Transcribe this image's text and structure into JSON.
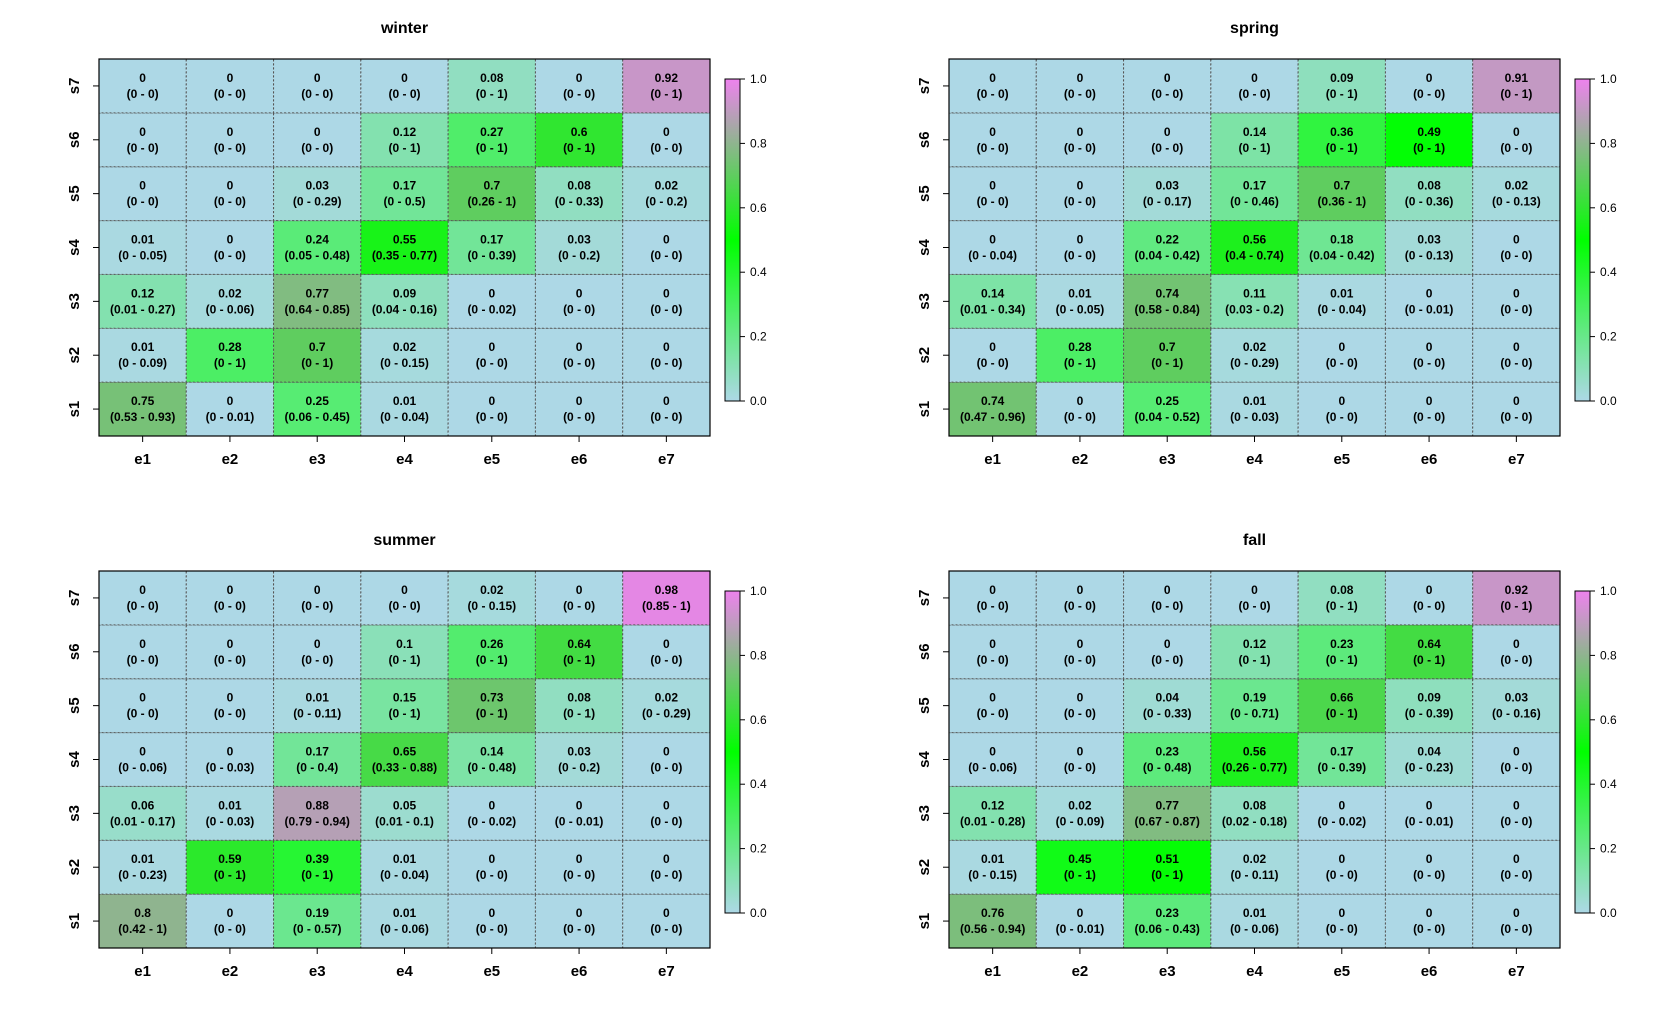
{
  "chart_data": [
    {
      "type": "heatmap",
      "title": "winter",
      "x_categories": [
        "e1",
        "e2",
        "e3",
        "e4",
        "e5",
        "e6",
        "e7"
      ],
      "y_categories": [
        "s1",
        "s2",
        "s3",
        "s4",
        "s5",
        "s6",
        "s7"
      ],
      "values": [
        [
          0.75,
          0,
          0.25,
          0.01,
          0,
          0,
          0
        ],
        [
          0.01,
          0.28,
          0.7,
          0.02,
          0,
          0,
          0
        ],
        [
          0.12,
          0.02,
          0.77,
          0.09,
          0,
          0,
          0
        ],
        [
          0.01,
          0,
          0.24,
          0.55,
          0.17,
          0.03,
          0
        ],
        [
          0,
          0,
          0.03,
          0.17,
          0.7,
          0.08,
          0.02
        ],
        [
          0,
          0,
          0,
          0.12,
          0.27,
          0.6,
          0
        ],
        [
          0,
          0,
          0,
          0,
          0.08,
          0,
          0.92
        ]
      ],
      "cell_labels": [
        [
          "0.75",
          "0",
          "0.25",
          "0.01",
          "0",
          "0",
          "0"
        ],
        [
          "0.01",
          "0.28",
          "0.7",
          "0.02",
          "0",
          "0",
          "0"
        ],
        [
          "0.12",
          "0.02",
          "0.77",
          "0.09",
          "0",
          "0",
          "0"
        ],
        [
          "0.01",
          "0",
          "0.24",
          "0.55",
          "0.17",
          "0.03",
          "0"
        ],
        [
          "0",
          "0",
          "0.03",
          "0.17",
          "0.7",
          "0.08",
          "0.02"
        ],
        [
          "0",
          "0",
          "0",
          "0.12",
          "0.27",
          "0.6",
          "0"
        ],
        [
          "0",
          "0",
          "0",
          "0",
          "0.08",
          "0",
          "0.92"
        ]
      ],
      "intervals": [
        [
          "(0.53 - 0.93)",
          "(0 - 0.01)",
          "(0.06 - 0.45)",
          "(0 - 0.04)",
          "(0 - 0)",
          "(0 - 0)",
          "(0 - 0)"
        ],
        [
          "(0 - 0.09)",
          "(0 - 1)",
          "(0 - 1)",
          "(0 - 0.15)",
          "(0 - 0)",
          "(0 - 0)",
          "(0 - 0)"
        ],
        [
          "(0.01 - 0.27)",
          "(0 - 0.06)",
          "(0.64 - 0.85)",
          "(0.04 - 0.16)",
          "(0 - 0.02)",
          "(0 - 0)",
          "(0 - 0)"
        ],
        [
          "(0 - 0.05)",
          "(0 - 0)",
          "(0.05 - 0.48)",
          "(0.35 - 0.77)",
          "(0 - 0.39)",
          "(0 - 0.2)",
          "(0 - 0)"
        ],
        [
          "(0 - 0)",
          "(0 - 0)",
          "(0 - 0.29)",
          "(0 - 0.5)",
          "(0.26 - 1)",
          "(0 - 0.33)",
          "(0 - 0.2)"
        ],
        [
          "(0 - 0)",
          "(0 - 0)",
          "(0 - 0)",
          "(0 - 1)",
          "(0 - 1)",
          "(0 - 1)",
          "(0 - 0)"
        ],
        [
          "(0 - 0)",
          "(0 - 0)",
          "(0 - 0)",
          "(0 - 0)",
          "(0 - 1)",
          "(0 - 0)",
          "(0 - 1)"
        ]
      ],
      "colorbar": {
        "ticks": [
          "0.0",
          "0.2",
          "0.4",
          "0.6",
          "0.8",
          "1.0"
        ],
        "range": [
          0,
          1
        ]
      }
    },
    {
      "type": "heatmap",
      "title": "spring",
      "x_categories": [
        "e1",
        "e2",
        "e3",
        "e4",
        "e5",
        "e6",
        "e7"
      ],
      "y_categories": [
        "s1",
        "s2",
        "s3",
        "s4",
        "s5",
        "s6",
        "s7"
      ],
      "values": [
        [
          0.74,
          0,
          0.25,
          0.01,
          0,
          0,
          0
        ],
        [
          0,
          0.28,
          0.7,
          0.02,
          0,
          0,
          0
        ],
        [
          0.14,
          0.01,
          0.74,
          0.11,
          0.01,
          0,
          0
        ],
        [
          0,
          0,
          0.22,
          0.56,
          0.18,
          0.03,
          0
        ],
        [
          0,
          0,
          0.03,
          0.17,
          0.7,
          0.08,
          0.02
        ],
        [
          0,
          0,
          0,
          0.14,
          0.36,
          0.49,
          0
        ],
        [
          0,
          0,
          0,
          0,
          0.09,
          0,
          0.91
        ]
      ],
      "cell_labels": [
        [
          "0.74",
          "0",
          "0.25",
          "0.01",
          "0",
          "0",
          "0"
        ],
        [
          "0",
          "0.28",
          "0.7",
          "0.02",
          "0",
          "0",
          "0"
        ],
        [
          "0.14",
          "0.01",
          "0.74",
          "0.11",
          "0.01",
          "0",
          "0"
        ],
        [
          "0",
          "0",
          "0.22",
          "0.56",
          "0.18",
          "0.03",
          "0"
        ],
        [
          "0",
          "0",
          "0.03",
          "0.17",
          "0.7",
          "0.08",
          "0.02"
        ],
        [
          "0",
          "0",
          "0",
          "0.14",
          "0.36",
          "0.49",
          "0"
        ],
        [
          "0",
          "0",
          "0",
          "0",
          "0.09",
          "0",
          "0.91"
        ]
      ],
      "intervals": [
        [
          "(0.47 - 0.96)",
          "(0 - 0)",
          "(0.04 - 0.52)",
          "(0 - 0.03)",
          "(0 - 0)",
          "(0 - 0)",
          "(0 - 0)"
        ],
        [
          "(0 - 0)",
          "(0 - 1)",
          "(0 - 1)",
          "(0 - 0.29)",
          "(0 - 0)",
          "(0 - 0)",
          "(0 - 0)"
        ],
        [
          "(0.01 - 0.34)",
          "(0 - 0.05)",
          "(0.58 - 0.84)",
          "(0.03 - 0.2)",
          "(0 - 0.04)",
          "(0 - 0.01)",
          "(0 - 0)"
        ],
        [
          "(0 - 0.04)",
          "(0 - 0)",
          "(0.04 - 0.42)",
          "(0.4 - 0.74)",
          "(0.04 - 0.42)",
          "(0 - 0.13)",
          "(0 - 0)"
        ],
        [
          "(0 - 0)",
          "(0 - 0)",
          "(0 - 0.17)",
          "(0 - 0.46)",
          "(0.36 - 1)",
          "(0 - 0.36)",
          "(0 - 0.13)"
        ],
        [
          "(0 - 0)",
          "(0 - 0)",
          "(0 - 0)",
          "(0 - 1)",
          "(0 - 1)",
          "(0 - 1)",
          "(0 - 0)"
        ],
        [
          "(0 - 0)",
          "(0 - 0)",
          "(0 - 0)",
          "(0 - 0)",
          "(0 - 1)",
          "(0 - 0)",
          "(0 - 1)"
        ]
      ],
      "colorbar": {
        "ticks": [
          "0.0",
          "0.2",
          "0.4",
          "0.6",
          "0.8",
          "1.0"
        ],
        "range": [
          0,
          1
        ]
      }
    },
    {
      "type": "heatmap",
      "title": "summer",
      "x_categories": [
        "e1",
        "e2",
        "e3",
        "e4",
        "e5",
        "e6",
        "e7"
      ],
      "y_categories": [
        "s1",
        "s2",
        "s3",
        "s4",
        "s5",
        "s6",
        "s7"
      ],
      "values": [
        [
          0.8,
          0,
          0.19,
          0.01,
          0,
          0,
          0
        ],
        [
          0.01,
          0.59,
          0.39,
          0.01,
          0,
          0,
          0
        ],
        [
          0.06,
          0.01,
          0.88,
          0.05,
          0,
          0,
          0
        ],
        [
          0,
          0,
          0.17,
          0.65,
          0.14,
          0.03,
          0
        ],
        [
          0,
          0,
          0.01,
          0.15,
          0.73,
          0.08,
          0.02
        ],
        [
          0,
          0,
          0,
          0.1,
          0.26,
          0.64,
          0
        ],
        [
          0,
          0,
          0,
          0,
          0.02,
          0,
          0.98
        ]
      ],
      "cell_labels": [
        [
          "0.8",
          "0",
          "0.19",
          "0.01",
          "0",
          "0",
          "0"
        ],
        [
          "0.01",
          "0.59",
          "0.39",
          "0.01",
          "0",
          "0",
          "0"
        ],
        [
          "0.06",
          "0.01",
          "0.88",
          "0.05",
          "0",
          "0",
          "0"
        ],
        [
          "0",
          "0",
          "0.17",
          "0.65",
          "0.14",
          "0.03",
          "0"
        ],
        [
          "0",
          "0",
          "0.01",
          "0.15",
          "0.73",
          "0.08",
          "0.02"
        ],
        [
          "0",
          "0",
          "0",
          "0.1",
          "0.26",
          "0.64",
          "0"
        ],
        [
          "0",
          "0",
          "0",
          "0",
          "0.02",
          "0",
          "0.98"
        ]
      ],
      "intervals": [
        [
          "(0.42 - 1)",
          "(0 - 0)",
          "(0 - 0.57)",
          "(0 - 0.06)",
          "(0 - 0)",
          "(0 - 0)",
          "(0 - 0)"
        ],
        [
          "(0 - 0.23)",
          "(0 - 1)",
          "(0 - 1)",
          "(0 - 0.04)",
          "(0 - 0)",
          "(0 - 0)",
          "(0 - 0)"
        ],
        [
          "(0.01 - 0.17)",
          "(0 - 0.03)",
          "(0.79 - 0.94)",
          "(0.01 - 0.1)",
          "(0 - 0.02)",
          "(0 - 0.01)",
          "(0 - 0)"
        ],
        [
          "(0 - 0.06)",
          "(0 - 0.03)",
          "(0 - 0.4)",
          "(0.33 - 0.88)",
          "(0 - 0.48)",
          "(0 - 0.2)",
          "(0 - 0)"
        ],
        [
          "(0 - 0)",
          "(0 - 0)",
          "(0 - 0.11)",
          "(0 - 1)",
          "(0 - 1)",
          "(0 - 1)",
          "(0 - 0.29)"
        ],
        [
          "(0 - 0)",
          "(0 - 0)",
          "(0 - 0)",
          "(0 - 1)",
          "(0 - 1)",
          "(0 - 1)",
          "(0 - 0)"
        ],
        [
          "(0 - 0)",
          "(0 - 0)",
          "(0 - 0)",
          "(0 - 0)",
          "(0 - 0.15)",
          "(0 - 0)",
          "(0.85 - 1)"
        ]
      ],
      "colorbar": {
        "ticks": [
          "0.0",
          "0.2",
          "0.4",
          "0.6",
          "0.8",
          "1.0"
        ],
        "range": [
          0,
          1
        ]
      }
    },
    {
      "type": "heatmap",
      "title": "fall",
      "x_categories": [
        "e1",
        "e2",
        "e3",
        "e4",
        "e5",
        "e6",
        "e7"
      ],
      "y_categories": [
        "s1",
        "s2",
        "s3",
        "s4",
        "s5",
        "s6",
        "s7"
      ],
      "values": [
        [
          0.76,
          0,
          0.23,
          0.01,
          0,
          0,
          0
        ],
        [
          0.01,
          0.45,
          0.51,
          0.02,
          0,
          0,
          0
        ],
        [
          0.12,
          0.02,
          0.77,
          0.08,
          0,
          0,
          0
        ],
        [
          0,
          0,
          0.23,
          0.56,
          0.17,
          0.04,
          0
        ],
        [
          0,
          0,
          0.04,
          0.19,
          0.66,
          0.09,
          0.03
        ],
        [
          0,
          0,
          0,
          0.12,
          0.23,
          0.64,
          0
        ],
        [
          0,
          0,
          0,
          0,
          0.08,
          0,
          0.92
        ]
      ],
      "cell_labels": [
        [
          "0.76",
          "0",
          "0.23",
          "0.01",
          "0",
          "0",
          "0"
        ],
        [
          "0.01",
          "0.45",
          "0.51",
          "0.02",
          "0",
          "0",
          "0"
        ],
        [
          "0.12",
          "0.02",
          "0.77",
          "0.08",
          "0",
          "0",
          "0"
        ],
        [
          "0",
          "0",
          "0.23",
          "0.56",
          "0.17",
          "0.04",
          "0"
        ],
        [
          "0",
          "0",
          "0.04",
          "0.19",
          "0.66",
          "0.09",
          "0.03"
        ],
        [
          "0",
          "0",
          "0",
          "0.12",
          "0.23",
          "0.64",
          "0"
        ],
        [
          "0",
          "0",
          "0",
          "0",
          "0.08",
          "0",
          "0.92"
        ]
      ],
      "intervals": [
        [
          "(0.56 - 0.94)",
          "(0 - 0.01)",
          "(0.06 - 0.43)",
          "(0 - 0.06)",
          "(0 - 0)",
          "(0 - 0)",
          "(0 - 0)"
        ],
        [
          "(0 - 0.15)",
          "(0 - 1)",
          "(0 - 1)",
          "(0 - 0.11)",
          "(0 - 0)",
          "(0 - 0)",
          "(0 - 0)"
        ],
        [
          "(0.01 - 0.28)",
          "(0 - 0.09)",
          "(0.67 - 0.87)",
          "(0.02 - 0.18)",
          "(0 - 0.02)",
          "(0 - 0.01)",
          "(0 - 0)"
        ],
        [
          "(0 - 0.06)",
          "(0 - 0)",
          "(0 - 0.48)",
          "(0.26 - 0.77)",
          "(0 - 0.39)",
          "(0 - 0.23)",
          "(0 - 0)"
        ],
        [
          "(0 - 0)",
          "(0 - 0)",
          "(0 - 0.33)",
          "(0 - 0.71)",
          "(0 - 1)",
          "(0 - 0.39)",
          "(0 - 0.16)"
        ],
        [
          "(0 - 0)",
          "(0 - 0)",
          "(0 - 0)",
          "(0 - 1)",
          "(0 - 1)",
          "(0 - 1)",
          "(0 - 0)"
        ],
        [
          "(0 - 0)",
          "(0 - 0)",
          "(0 - 0)",
          "(0 - 0)",
          "(0 - 1)",
          "(0 - 0)",
          "(0 - 1)"
        ]
      ],
      "colorbar": {
        "ticks": [
          "0.0",
          "0.2",
          "0.4",
          "0.6",
          "0.8",
          "1.0"
        ],
        "range": [
          0,
          1
        ]
      }
    }
  ],
  "colors": {
    "low": "#ADD8E6",
    "mid": "#00FF00",
    "high": "#EE82EE",
    "grid": "#555555",
    "text": "#000000"
  }
}
